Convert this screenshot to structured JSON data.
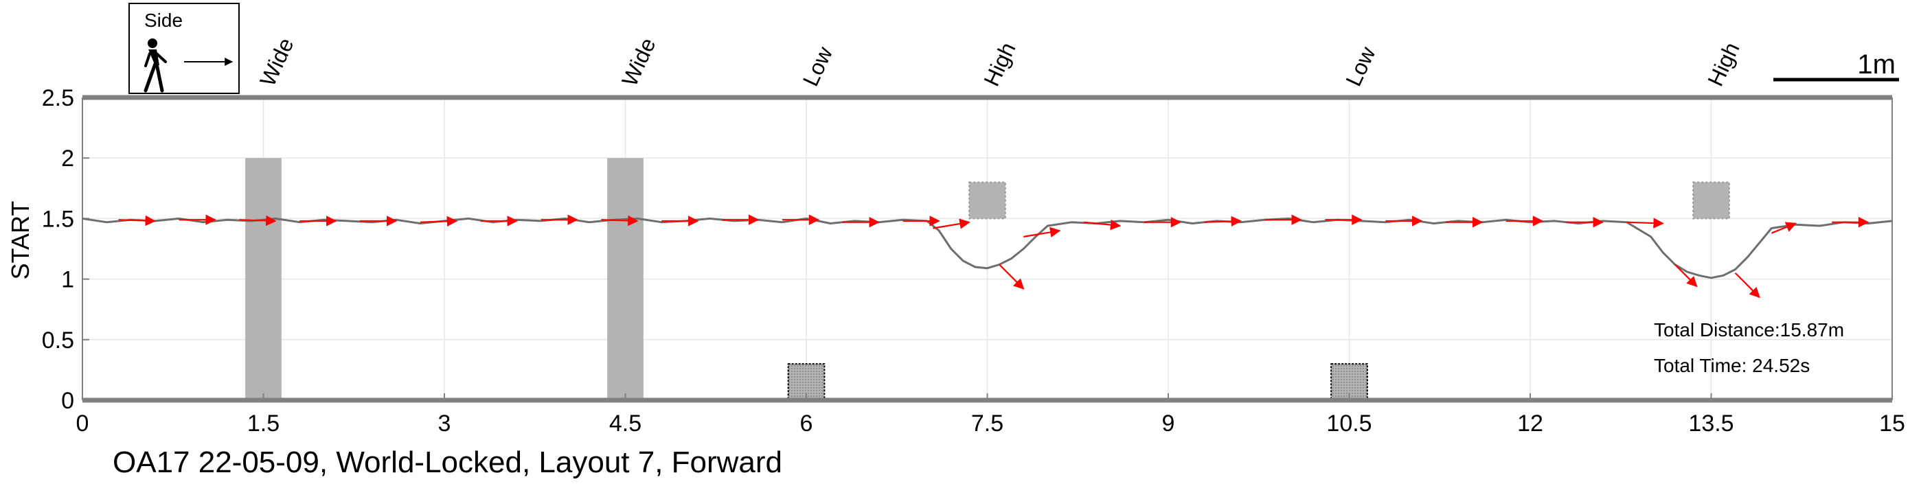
{
  "chart_data": {
    "type": "line",
    "ylabel": "START",
    "caption": "OA17 22-05-09, World-Locked, Layout 7, Forward",
    "xlim": [
      0,
      15
    ],
    "ylim": [
      0,
      2.5
    ],
    "x_ticks": [
      "0",
      "1.5",
      "3",
      "4.5",
      "6",
      "7.5",
      "9",
      "10.5",
      "12",
      "13.5",
      "15"
    ],
    "y_ticks": [
      "0",
      "0.5",
      "1",
      "1.5",
      "2",
      "2.5"
    ],
    "grid": true,
    "legend": {
      "label": "Side",
      "icon": "walking-person-icon",
      "arrow": "right-arrow-icon"
    },
    "scale_bar": {
      "label": "1m",
      "length": 1
    },
    "obstacles": [
      {
        "label": "Wide",
        "kind": "wide",
        "x": 1.5,
        "width": 0.3,
        "y_bottom": 0,
        "y_top": 2
      },
      {
        "label": "Wide",
        "kind": "wide",
        "x": 4.5,
        "width": 0.3,
        "y_bottom": 0,
        "y_top": 2
      },
      {
        "label": "Low",
        "kind": "low",
        "x": 6,
        "width": 0.3,
        "y_bottom": 0,
        "y_top": 0.3
      },
      {
        "label": "High",
        "kind": "high",
        "x": 7.5,
        "width": 0.3,
        "y_bottom": 1.5,
        "y_top": 1.8
      },
      {
        "label": "Low",
        "kind": "low",
        "x": 10.5,
        "width": 0.3,
        "y_bottom": 0,
        "y_top": 0.3
      },
      {
        "label": "High",
        "kind": "high",
        "x": 13.5,
        "width": 0.3,
        "y_bottom": 1.5,
        "y_top": 1.8
      }
    ],
    "series": [
      {
        "x": [
          0,
          0.2,
          0.4,
          0.6,
          0.8,
          1.0,
          1.2,
          1.4,
          1.6,
          1.8,
          2.0,
          2.2,
          2.4,
          2.6,
          2.8,
          3.0,
          3.2,
          3.4,
          3.6,
          3.8,
          4.0,
          4.2,
          4.4,
          4.6,
          4.8,
          5.0,
          5.2,
          5.4,
          5.6,
          5.8,
          6.0,
          6.2,
          6.4,
          6.6,
          6.8,
          7.0,
          7.1,
          7.2,
          7.3,
          7.4,
          7.5,
          7.6,
          7.7,
          7.8,
          7.9,
          8.0,
          8.2,
          8.4,
          8.6,
          8.8,
          9.0,
          9.2,
          9.4,
          9.6,
          9.8,
          10.0,
          10.2,
          10.4,
          10.6,
          10.8,
          11.0,
          11.2,
          11.4,
          11.6,
          11.8,
          12.0,
          12.2,
          12.4,
          12.6,
          12.8,
          13.0,
          13.1,
          13.2,
          13.3,
          13.4,
          13.5,
          13.6,
          13.7,
          13.8,
          13.9,
          14.0,
          14.2,
          14.4,
          14.6,
          14.8,
          15.0
        ],
        "y": [
          1.5,
          1.47,
          1.49,
          1.48,
          1.5,
          1.47,
          1.49,
          1.48,
          1.5,
          1.47,
          1.49,
          1.48,
          1.47,
          1.49,
          1.46,
          1.48,
          1.5,
          1.47,
          1.49,
          1.48,
          1.5,
          1.47,
          1.49,
          1.5,
          1.47,
          1.48,
          1.5,
          1.48,
          1.49,
          1.47,
          1.5,
          1.46,
          1.48,
          1.47,
          1.49,
          1.48,
          1.4,
          1.25,
          1.15,
          1.1,
          1.09,
          1.12,
          1.17,
          1.25,
          1.35,
          1.44,
          1.47,
          1.46,
          1.48,
          1.47,
          1.49,
          1.46,
          1.48,
          1.47,
          1.49,
          1.5,
          1.47,
          1.49,
          1.48,
          1.47,
          1.49,
          1.46,
          1.48,
          1.47,
          1.49,
          1.47,
          1.48,
          1.46,
          1.48,
          1.47,
          1.35,
          1.22,
          1.12,
          1.06,
          1.03,
          1.01,
          1.03,
          1.08,
          1.18,
          1.3,
          1.42,
          1.45,
          1.44,
          1.47,
          1.46,
          1.48
        ]
      }
    ],
    "direction_arrows": [
      {
        "x": 0.3,
        "y": 1.49,
        "dx": 0.3,
        "dy": -0.01
      },
      {
        "x": 0.8,
        "y": 1.49,
        "dx": 0.3,
        "dy": 0.0
      },
      {
        "x": 1.3,
        "y": 1.49,
        "dx": 0.3,
        "dy": -0.01
      },
      {
        "x": 1.8,
        "y": 1.48,
        "dx": 0.3,
        "dy": 0.0
      },
      {
        "x": 2.3,
        "y": 1.48,
        "dx": 0.3,
        "dy": 0.0
      },
      {
        "x": 2.8,
        "y": 1.47,
        "dx": 0.3,
        "dy": 0.01
      },
      {
        "x": 3.3,
        "y": 1.48,
        "dx": 0.3,
        "dy": 0.0
      },
      {
        "x": 3.8,
        "y": 1.49,
        "dx": 0.3,
        "dy": 0.0
      },
      {
        "x": 4.3,
        "y": 1.49,
        "dx": 0.3,
        "dy": -0.01
      },
      {
        "x": 4.8,
        "y": 1.48,
        "dx": 0.3,
        "dy": 0.0
      },
      {
        "x": 5.3,
        "y": 1.49,
        "dx": 0.3,
        "dy": 0.0
      },
      {
        "x": 5.8,
        "y": 1.49,
        "dx": 0.3,
        "dy": 0.0
      },
      {
        "x": 6.3,
        "y": 1.47,
        "dx": 0.3,
        "dy": 0.0
      },
      {
        "x": 6.8,
        "y": 1.48,
        "dx": 0.3,
        "dy": 0.0
      },
      {
        "x": 7.05,
        "y": 1.42,
        "dx": 0.3,
        "dy": 0.05
      },
      {
        "x": 7.6,
        "y": 1.12,
        "dx": 0.2,
        "dy": -0.2
      },
      {
        "x": 7.8,
        "y": 1.35,
        "dx": 0.3,
        "dy": 0.05
      },
      {
        "x": 8.3,
        "y": 1.47,
        "dx": 0.3,
        "dy": -0.03
      },
      {
        "x": 8.8,
        "y": 1.47,
        "dx": 0.3,
        "dy": 0.0
      },
      {
        "x": 9.3,
        "y": 1.47,
        "dx": 0.3,
        "dy": 0.01
      },
      {
        "x": 9.8,
        "y": 1.49,
        "dx": 0.3,
        "dy": 0.0
      },
      {
        "x": 10.3,
        "y": 1.49,
        "dx": 0.3,
        "dy": 0.0
      },
      {
        "x": 10.8,
        "y": 1.48,
        "dx": 0.3,
        "dy": 0.0
      },
      {
        "x": 11.3,
        "y": 1.47,
        "dx": 0.3,
        "dy": 0.0
      },
      {
        "x": 11.8,
        "y": 1.48,
        "dx": 0.3,
        "dy": 0.0
      },
      {
        "x": 12.3,
        "y": 1.47,
        "dx": 0.3,
        "dy": 0.0
      },
      {
        "x": 12.8,
        "y": 1.47,
        "dx": 0.3,
        "dy": -0.01
      },
      {
        "x": 13.2,
        "y": 1.12,
        "dx": 0.18,
        "dy": -0.18
      },
      {
        "x": 13.7,
        "y": 1.05,
        "dx": 0.2,
        "dy": -0.2
      },
      {
        "x": 14.0,
        "y": 1.38,
        "dx": 0.2,
        "dy": 0.08
      },
      {
        "x": 14.5,
        "y": 1.47,
        "dx": 0.3,
        "dy": 0.0
      }
    ],
    "annotations": [
      "Total Distance:15.87m",
      "Total Time: 24.52s"
    ],
    "colors": {
      "trajectory": "#6e6e6e",
      "arrows": "#ff0000",
      "obstacle": "#b3b3b3",
      "axes": "#808080",
      "grid": "#e6e6e6"
    }
  }
}
